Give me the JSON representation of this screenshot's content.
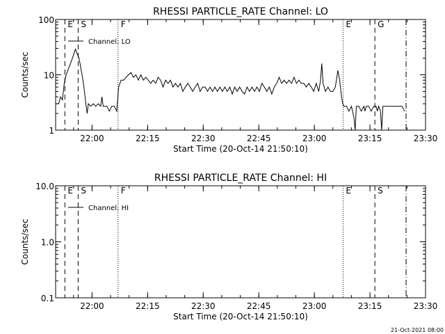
{
  "chart_data": [
    {
      "type": "line",
      "title": "RHESSI PARTICLE_RATE Channel: LO",
      "xlabel": "Start Time (20-Oct-14 21:50:10)",
      "ylabel": "Counts/sec",
      "y_scale": "log",
      "ylim": [
        1,
        100
      ],
      "y_ticks": [
        {
          "value": 1,
          "label": "1"
        },
        {
          "value": 10,
          "label": "10"
        },
        {
          "value": 100,
          "label": "100"
        }
      ],
      "x_ticks": [
        {
          "value": "22:00",
          "label": "22:00"
        },
        {
          "value": "22:15",
          "label": "22:15"
        },
        {
          "value": "22:30",
          "label": "22:30"
        },
        {
          "value": "22:45",
          "label": "22:45"
        },
        {
          "value": "23:00",
          "label": "23:00"
        },
        {
          "value": "23:15",
          "label": "23:15"
        },
        {
          "value": "23:30",
          "label": "23:30"
        }
      ],
      "legend": {
        "position": "top-left",
        "entries": [
          "Channel: LO"
        ]
      },
      "markers": [
        {
          "label": "E",
          "time": "21:52:40",
          "style": "dashed"
        },
        {
          "label": "S",
          "time": "21:56:15",
          "style": "dashed"
        },
        {
          "label": "F",
          "time": "22:07:00",
          "style": "dotted"
        },
        {
          "label": "E",
          "time": "23:07:45",
          "style": "dotted"
        },
        {
          "label": "G",
          "time": "23:16:20",
          "style": "dashed"
        },
        {
          "label": "",
          "time": "23:24:45",
          "style": "dashdot"
        }
      ],
      "series": [
        {
          "name": "Channel: LO",
          "color": "#000000",
          "points": [
            [
              "21:50:10",
              3
            ],
            [
              "21:51:00",
              3
            ],
            [
              "21:51:30",
              4
            ],
            [
              "21:52:00",
              3.5
            ],
            [
              "21:52:30",
              7
            ],
            [
              "21:53:00",
              10
            ],
            [
              "21:53:40",
              13
            ],
            [
              "21:54:20",
              17
            ],
            [
              "21:55:00",
              23
            ],
            [
              "21:55:30",
              29
            ],
            [
              "21:56:00",
              24
            ],
            [
              "21:56:30",
              20
            ],
            [
              "21:57:00",
              13
            ],
            [
              "21:57:40",
              7
            ],
            [
              "21:58:20",
              3
            ],
            [
              "21:58:40",
              2
            ],
            [
              "21:59:00",
              3
            ],
            [
              "21:59:40",
              2.7
            ],
            [
              "22:00:20",
              3
            ],
            [
              "22:01:00",
              2.7
            ],
            [
              "22:01:40",
              3
            ],
            [
              "22:02:20",
              2.7
            ],
            [
              "22:02:40",
              4
            ],
            [
              "22:03:00",
              2.7
            ],
            [
              "22:04:00",
              2.7
            ],
            [
              "22:04:40",
              2.2
            ],
            [
              "22:05:20",
              2.7
            ],
            [
              "22:06:00",
              2.7
            ],
            [
              "22:06:40",
              2.2
            ],
            [
              "22:07:10",
              6
            ],
            [
              "22:07:50",
              8
            ],
            [
              "22:08:30",
              8
            ],
            [
              "22:09:10",
              9
            ],
            [
              "22:09:50",
              10
            ],
            [
              "22:10:30",
              11
            ],
            [
              "22:11:10",
              9
            ],
            [
              "22:11:50",
              10
            ],
            [
              "22:12:30",
              8
            ],
            [
              "22:13:10",
              10
            ],
            [
              "22:13:50",
              8
            ],
            [
              "22:14:30",
              9
            ],
            [
              "22:15:10",
              8
            ],
            [
              "22:15:50",
              7
            ],
            [
              "22:16:30",
              8
            ],
            [
              "22:17:10",
              7
            ],
            [
              "22:17:50",
              9
            ],
            [
              "22:18:30",
              8
            ],
            [
              "22:19:10",
              6
            ],
            [
              "22:19:50",
              8
            ],
            [
              "22:20:30",
              7
            ],
            [
              "22:21:10",
              8
            ],
            [
              "22:21:50",
              6
            ],
            [
              "22:22:30",
              7
            ],
            [
              "22:23:10",
              6
            ],
            [
              "22:23:50",
              7
            ],
            [
              "22:24:30",
              5
            ],
            [
              "22:25:10",
              6
            ],
            [
              "22:25:50",
              7
            ],
            [
              "22:26:30",
              6
            ],
            [
              "22:27:10",
              5
            ],
            [
              "22:27:50",
              6
            ],
            [
              "22:28:30",
              7
            ],
            [
              "22:29:10",
              5
            ],
            [
              "22:29:50",
              6
            ],
            [
              "22:30:30",
              6
            ],
            [
              "22:31:10",
              5
            ],
            [
              "22:31:50",
              6
            ],
            [
              "22:32:30",
              5
            ],
            [
              "22:33:10",
              6
            ],
            [
              "22:33:50",
              5
            ],
            [
              "22:34:30",
              6
            ],
            [
              "22:35:10",
              5
            ],
            [
              "22:35:50",
              6
            ],
            [
              "22:36:30",
              5
            ],
            [
              "22:37:10",
              6
            ],
            [
              "22:37:50",
              4.5
            ],
            [
              "22:38:30",
              6
            ],
            [
              "22:39:10",
              5
            ],
            [
              "22:39:50",
              6
            ],
            [
              "22:40:30",
              5
            ],
            [
              "22:41:10",
              4.5
            ],
            [
              "22:41:50",
              6
            ],
            [
              "22:42:30",
              5
            ],
            [
              "22:43:10",
              6
            ],
            [
              "22:43:50",
              5
            ],
            [
              "22:44:30",
              6
            ],
            [
              "22:45:10",
              5
            ],
            [
              "22:45:50",
              7
            ],
            [
              "22:46:30",
              6
            ],
            [
              "22:47:10",
              5
            ],
            [
              "22:47:50",
              6
            ],
            [
              "22:48:30",
              4.5
            ],
            [
              "22:49:10",
              6
            ],
            [
              "22:49:50",
              7
            ],
            [
              "22:50:30",
              9
            ],
            [
              "22:51:10",
              7
            ],
            [
              "22:51:50",
              8
            ],
            [
              "22:52:30",
              7
            ],
            [
              "22:53:10",
              8
            ],
            [
              "22:53:50",
              7
            ],
            [
              "22:54:30",
              9
            ],
            [
              "22:55:10",
              7
            ],
            [
              "22:55:50",
              8
            ],
            [
              "22:56:30",
              7
            ],
            [
              "22:57:10",
              7
            ],
            [
              "22:57:50",
              6
            ],
            [
              "22:58:30",
              7
            ],
            [
              "22:59:10",
              6
            ],
            [
              "22:59:50",
              5
            ],
            [
              "23:00:30",
              7
            ],
            [
              "23:01:10",
              5
            ],
            [
              "23:01:40",
              8
            ],
            [
              "23:02:00",
              16
            ],
            [
              "23:02:20",
              7
            ],
            [
              "23:03:00",
              5
            ],
            [
              "23:03:40",
              6
            ],
            [
              "23:04:20",
              5
            ],
            [
              "23:05:00",
              5
            ],
            [
              "23:05:40",
              6
            ],
            [
              "23:06:20",
              12
            ],
            [
              "23:06:50",
              8
            ],
            [
              "23:07:20",
              4
            ],
            [
              "23:07:40",
              3
            ],
            [
              "23:08:00",
              2.7
            ],
            [
              "23:08:40",
              2.7
            ],
            [
              "23:09:20",
              2.2
            ],
            [
              "23:10:00",
              2.7
            ],
            [
              "23:10:40",
              1.7
            ],
            [
              "23:11:00",
              1
            ],
            [
              "23:11:20",
              2.7
            ],
            [
              "23:12:00",
              2.7
            ],
            [
              "23:12:40",
              2.2
            ],
            [
              "23:13:20",
              2.7
            ],
            [
              "23:13:40",
              2.2
            ],
            [
              "23:14:00",
              2.7
            ],
            [
              "23:14:40",
              2.7
            ],
            [
              "23:15:20",
              2.2
            ],
            [
              "23:16:00",
              2.7
            ],
            [
              "23:16:40",
              2.7
            ],
            [
              "23:17:00",
              2.2
            ],
            [
              "23:17:20",
              2.7
            ],
            [
              "23:17:50",
              2.2
            ],
            [
              "23:18:10",
              1
            ],
            [
              "23:18:30",
              2.7
            ],
            [
              "23:19:20",
              2.7
            ],
            [
              "23:20:00",
              2.7
            ],
            [
              "23:21:00",
              2.7
            ],
            [
              "23:22:00",
              2.7
            ],
            [
              "23:23:00",
              2.7
            ],
            [
              "23:23:40",
              2.7
            ],
            [
              "23:24:20",
              2.2
            ]
          ]
        }
      ]
    },
    {
      "type": "line",
      "title": "RHESSI PARTICLE_RATE Channel: HI",
      "xlabel": "Start Time (20-Oct-14 21:50:10)",
      "ylabel": "Counts/sec",
      "y_scale": "log",
      "ylim": [
        0.1,
        10
      ],
      "y_ticks": [
        {
          "value": 0.1,
          "label": "0.1"
        },
        {
          "value": 1,
          "label": "1.0"
        },
        {
          "value": 10,
          "label": "10.0"
        }
      ],
      "x_ticks": [
        {
          "value": "22:00",
          "label": "22:00"
        },
        {
          "value": "22:15",
          "label": "22:15"
        },
        {
          "value": "22:30",
          "label": "22:30"
        },
        {
          "value": "22:45",
          "label": "22:45"
        },
        {
          "value": "23:00",
          "label": "23:00"
        },
        {
          "value": "23:15",
          "label": "23:15"
        },
        {
          "value": "23:30",
          "label": "23:30"
        }
      ],
      "legend": {
        "position": "top-left",
        "entries": [
          "Channel: HI"
        ]
      },
      "markers": [
        {
          "label": "E",
          "time": "21:52:40",
          "style": "dashed"
        },
        {
          "label": "S",
          "time": "21:56:15",
          "style": "dashed"
        },
        {
          "label": "F",
          "time": "22:07:00",
          "style": "dotted"
        },
        {
          "label": "E",
          "time": "23:07:45",
          "style": "dotted"
        },
        {
          "label": "S",
          "time": "23:16:20",
          "style": "dashed"
        },
        {
          "label": "",
          "time": "23:24:45",
          "style": "dashdot"
        }
      ],
      "series": [
        {
          "name": "Channel: HI",
          "color": "#000000",
          "points": []
        }
      ]
    }
  ],
  "footer": {
    "timestamp": "21-Oct-2021 08:00"
  }
}
